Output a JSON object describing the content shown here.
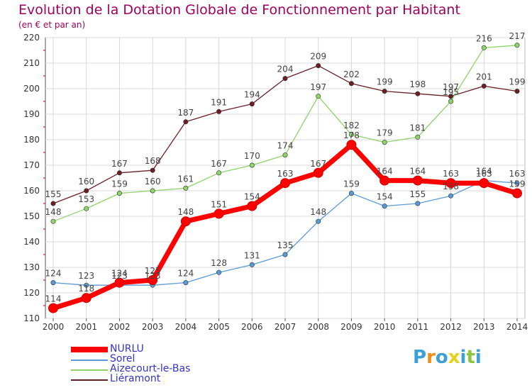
{
  "title": "Evolution de la Dotation Globale de Fonctionnement par Habitant",
  "subtitle": "(en € et par an)",
  "logo_text": "Proxiti",
  "chart_data": {
    "type": "line",
    "x": [
      "2000",
      "2001",
      "2002",
      "2003",
      "2004",
      "2005",
      "2006",
      "2007",
      "2008",
      "2009",
      "2010",
      "2011",
      "2012",
      "2013",
      "2014"
    ],
    "ylim": [
      110,
      220
    ],
    "yticks": [
      110,
      120,
      130,
      140,
      150,
      160,
      170,
      180,
      190,
      200,
      210,
      220
    ],
    "grid": true,
    "legend_position": "bottom-left",
    "series": [
      {
        "name": "NURLU",
        "color": "#ff0000",
        "values": [
          114,
          118,
          124,
          125,
          148,
          151,
          154,
          163,
          167,
          178,
          164,
          164,
          163,
          163,
          159
        ]
      },
      {
        "name": "Sorel",
        "color": "#5b9bd5",
        "values": [
          124,
          123,
          123,
          123,
          124,
          128,
          131,
          135,
          148,
          159,
          154,
          155,
          158,
          164,
          163
        ]
      },
      {
        "name": "Aizecourt-le-Bas",
        "color": "#8fd46a",
        "values": [
          148,
          153,
          159,
          160,
          161,
          167,
          170,
          174,
          197,
          182,
          179,
          181,
          195,
          216,
          217
        ]
      },
      {
        "name": "Liéramont",
        "color": "#6b1f25",
        "values": [
          155,
          160,
          167,
          168,
          187,
          191,
          194,
          204,
          209,
          202,
          199,
          198,
          197,
          201,
          199
        ]
      }
    ]
  }
}
